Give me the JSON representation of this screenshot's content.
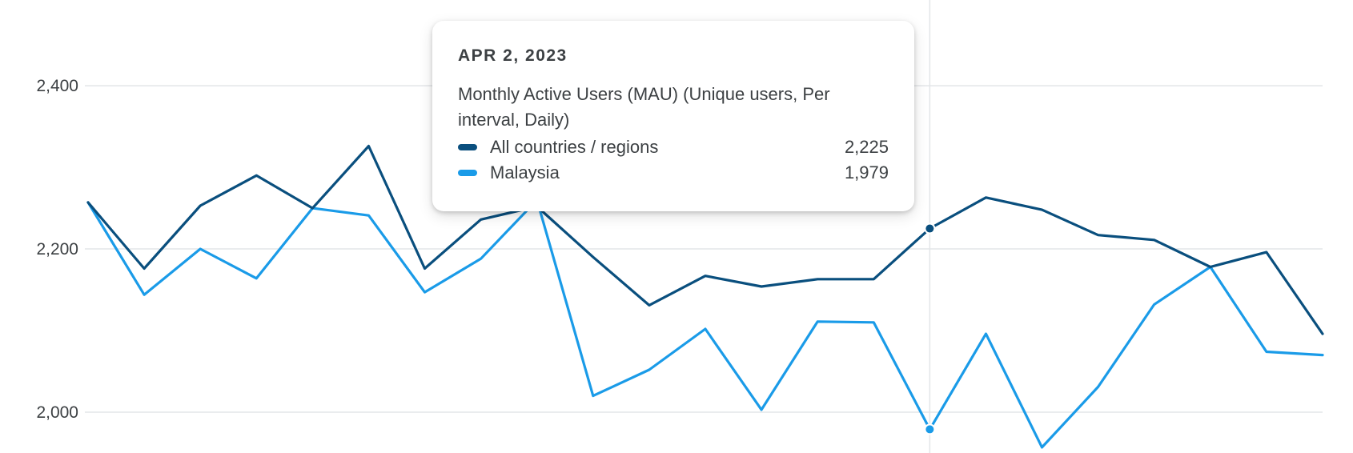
{
  "colors": {
    "all": "#0a4f7e",
    "malaysia": "#1a9be8",
    "grid": "#e3e5e8",
    "crosshair": "#e3e5e8"
  },
  "tooltip": {
    "date": "APR 2, 2023",
    "metric": "Monthly Active Users (MAU) (Unique users, Per interval, Daily)",
    "rows": [
      {
        "name": "All countries / regions",
        "value": "2,225"
      },
      {
        "name": "Malaysia",
        "value": "1,979"
      }
    ]
  },
  "chart_data": {
    "type": "line",
    "title": "",
    "xlabel": "",
    "ylabel": "",
    "yticks": [
      2000,
      2200,
      2400
    ],
    "ytick_labels": [
      "2,000",
      "2,200",
      "2,400"
    ],
    "ylim": [
      1950,
      2505
    ],
    "x": [
      -15,
      -14,
      -13,
      -12,
      -11,
      -10,
      -9,
      -8,
      -7,
      -6,
      -5,
      -4,
      -3,
      -2,
      -1,
      0,
      1,
      2,
      3,
      4,
      5,
      6,
      7
    ],
    "highlight_index": 15,
    "grid": true,
    "series": [
      {
        "name": "All countries / regions",
        "color_key": "all",
        "values": [
          2257,
          2176,
          2253,
          2290,
          2250,
          2326,
          2176,
          2236,
          2252,
          2190,
          2131,
          2167,
          2154,
          2163,
          2163,
          2225,
          2263,
          2248,
          2217,
          2211,
          2178,
          2196,
          2096
        ]
      },
      {
        "name": "Malaysia",
        "color_key": "malaysia",
        "values": [
          2257,
          2144,
          2200,
          2164,
          2250,
          2241,
          2147,
          2188,
          2260,
          2020,
          2052,
          2102,
          2003,
          2111,
          2110,
          1979,
          2096,
          1957,
          2031,
          2132,
          2178,
          2074,
          2070
        ]
      }
    ]
  }
}
